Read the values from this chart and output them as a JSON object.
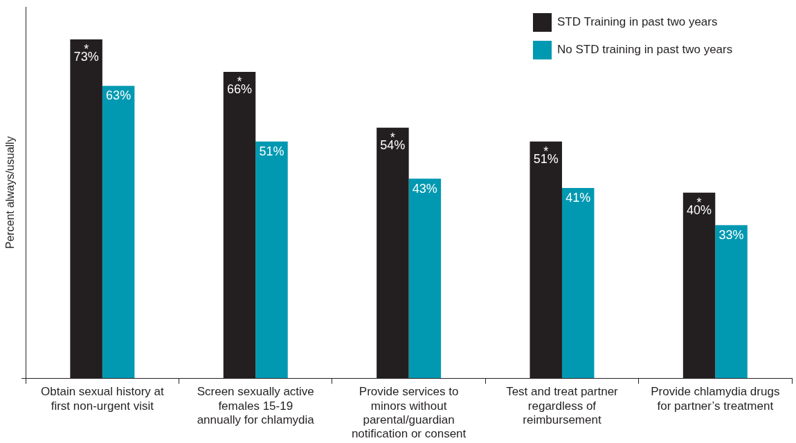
{
  "chart_data": {
    "type": "bar",
    "ylabel": "Percent always/usually",
    "categories": [
      "Obtain sexual history at\nfirst non-urgent visit",
      "Screen sexually active\nfemales 15-19\nannually for chlamydia",
      "Provide services to\nminors without\nparental/guardian\nnotification or consent",
      "Test and treat partner\nregardless of\nreimbursement",
      "Provide chlamydia drugs\nfor partner’s treatment"
    ],
    "series": [
      {
        "name": "STD Training in past two years",
        "color": "#231f20",
        "values": [
          73,
          66,
          54,
          51,
          40
        ],
        "value_labels": [
          "*\n73%",
          "*\n66%",
          "*\n54%",
          "*\n51%",
          "*\n40%"
        ]
      },
      {
        "name": "No STD training in past two years",
        "color": "#0099b1",
        "values": [
          63,
          51,
          43,
          41,
          33
        ],
        "value_labels": [
          "63%",
          "51%",
          "43%",
          "41%",
          "33%"
        ]
      }
    ],
    "ylim": [
      0,
      80
    ],
    "tick_labels": "x",
    "grid": false,
    "legend": "top right"
  }
}
